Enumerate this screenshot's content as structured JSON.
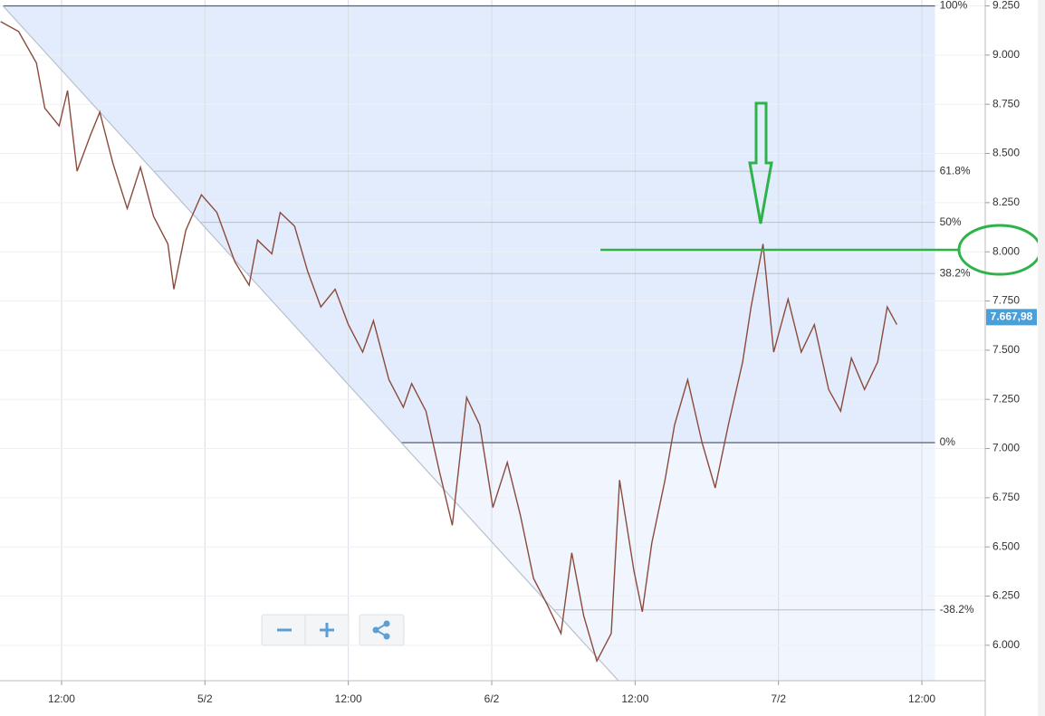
{
  "chart_data": {
    "type": "line",
    "x": [
      6.9,
      8.4,
      9.9,
      10.6,
      11.8,
      12.5,
      13.3,
      14.4,
      15.2,
      16.3,
      17.5,
      18.6,
      19.7,
      20.9,
      21.4,
      22.4,
      23.7,
      25.0,
      26.5,
      27.7,
      28.4,
      29.6,
      30.3,
      31.5,
      32.6,
      33.7,
      34.9,
      36.0,
      37.2,
      38.1,
      39.4,
      40.6,
      41.3,
      42.5,
      43.6,
      44.7,
      45.9,
      47.0,
      48.1,
      49.3,
      50.4,
      51.5,
      52.7,
      53.8,
      54.7,
      55.7,
      56.8,
      58.0,
      58.7,
      59.9,
      60.6,
      61.4,
      62.5,
      63.3,
      64.4,
      65.6,
      66.7,
      67.8,
      69.0,
      69.7,
      70.7,
      71.6,
      72.8,
      73.9,
      75.0,
      76.2,
      77.2,
      78.1,
      79.2,
      80.3,
      81.1,
      81.9
    ],
    "values": [
      9.17,
      9.12,
      8.96,
      8.73,
      8.64,
      8.82,
      8.41,
      8.59,
      8.71,
      8.45,
      8.22,
      8.43,
      8.18,
      8.04,
      7.81,
      8.11,
      8.29,
      8.2,
      7.95,
      7.83,
      8.06,
      7.99,
      8.2,
      8.13,
      7.9,
      7.72,
      7.81,
      7.63,
      7.49,
      7.65,
      7.35,
      7.21,
      7.33,
      7.19,
      6.89,
      6.61,
      7.26,
      7.12,
      6.7,
      6.93,
      6.66,
      6.34,
      6.2,
      6.06,
      6.47,
      6.15,
      5.92,
      6.06,
      6.84,
      6.38,
      6.17,
      6.52,
      6.84,
      7.12,
      7.35,
      7.03,
      6.8,
      7.12,
      7.44,
      7.72,
      8.04,
      7.49,
      7.76,
      7.49,
      7.63,
      7.3,
      7.19,
      7.46,
      7.3,
      7.44,
      7.72,
      7.63
    ],
    "color": "#8a4b3c",
    "xlim": [
      6.85,
      89.3
    ],
    "xticks": [
      {
        "value": 12,
        "label": "12:00"
      },
      {
        "value": 24,
        "label": "5/2"
      },
      {
        "value": 36,
        "label": "12:00"
      },
      {
        "value": 48,
        "label": "6/2"
      },
      {
        "value": 60,
        "label": "12:00"
      },
      {
        "value": 72,
        "label": "7/2"
      },
      {
        "value": 84,
        "label": "12:00"
      }
    ],
    "ylim": [
      5.82,
      9.28
    ],
    "yticks": [
      {
        "value": 6.0,
        "label": "6.000"
      },
      {
        "value": 6.25,
        "label": "6.250"
      },
      {
        "value": 6.5,
        "label": "6.500"
      },
      {
        "value": 6.75,
        "label": "6.750"
      },
      {
        "value": 7.0,
        "label": "7.000"
      },
      {
        "value": 7.25,
        "label": "7.250"
      },
      {
        "value": 7.5,
        "label": "7.500"
      },
      {
        "value": 7.75,
        "label": "7.750"
      },
      {
        "value": 8.0,
        "label": "8.000"
      },
      {
        "value": 8.25,
        "label": "8.250"
      },
      {
        "value": 8.5,
        "label": "8.500"
      },
      {
        "value": 8.75,
        "label": "8.750"
      },
      {
        "value": 9.0,
        "label": "9.000"
      },
      {
        "value": 9.25,
        "label": "9.250"
      }
    ],
    "grid": true,
    "trendline": {
      "x": [
        7.1,
        58.6
      ],
      "values": [
        9.25,
        5.82
      ]
    },
    "fib_end": 85.1,
    "fib_levels": [
      {
        "name": "100%",
        "price": 9.25
      },
      {
        "name": "61.8%",
        "price": 8.41
      },
      {
        "name": "50%",
        "price": 8.15
      },
      {
        "name": "38.2%",
        "price": 7.89
      },
      {
        "name": "0%",
        "price": 7.03
      },
      {
        "name": "-38.2%",
        "price": 6.18
      }
    ],
    "annotation_line": {
      "x": [
        57.1,
        87.2
      ],
      "value": 8.01,
      "color": "#2db34a"
    },
    "last_price": {
      "value": 7.66798,
      "label": "7.667,98"
    }
  }
}
